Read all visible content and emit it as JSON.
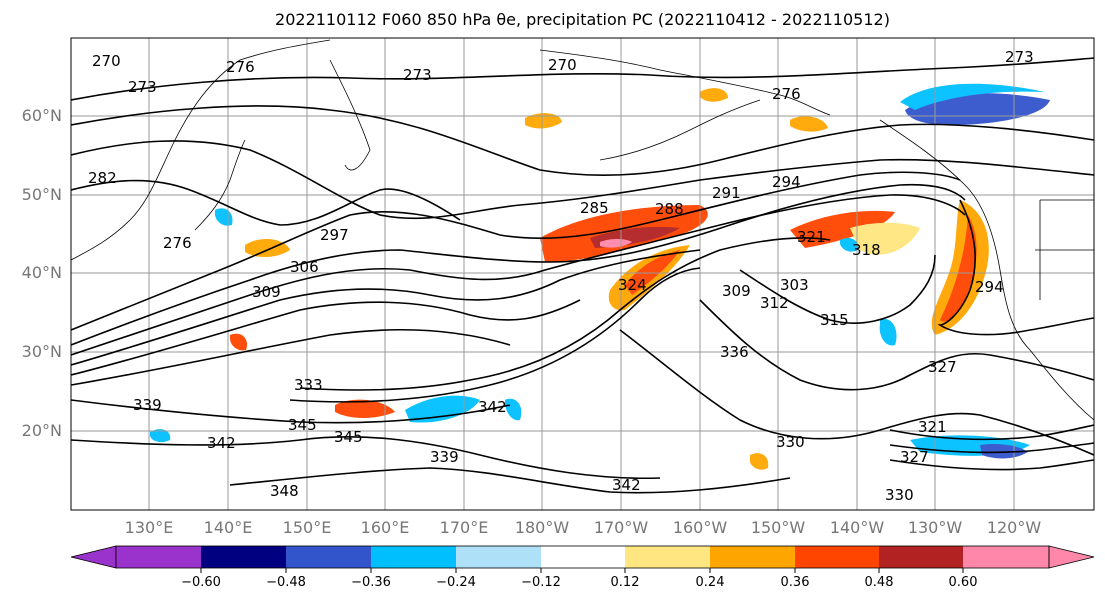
{
  "title": "2022110112 F060 850 hPa θe, precipitation PC (2022110412 - 2022110512)",
  "map": {
    "lat_labels": [
      "60°N",
      "50°N",
      "40°N",
      "30°N",
      "20°N"
    ],
    "lon_labels": [
      "130°E",
      "140°E",
      "150°E",
      "160°E",
      "170°E",
      "180°W",
      "170°W",
      "160°W",
      "150°W",
      "140°W",
      "130°W",
      "120°W"
    ],
    "contour_labels": [
      "270",
      "273",
      "276",
      "270",
      "273",
      "276",
      "273",
      "282",
      "276",
      "285",
      "288",
      "291",
      "294",
      "297",
      "306",
      "309",
      "312",
      "315",
      "318",
      "321",
      "324",
      "327",
      "330",
      "333",
      "336",
      "339",
      "342",
      "345",
      "348",
      "342",
      "345",
      "339",
      "342",
      "330",
      "327",
      "294",
      "309",
      "303",
      "321"
    ],
    "grid_color": "#999999",
    "contour_color": "#000000"
  },
  "colorbar": {
    "tick_labels": [
      "−0.60",
      "−0.48",
      "−0.36",
      "−0.24",
      "−0.12",
      "0.12",
      "0.24",
      "0.36",
      "0.48",
      "0.60"
    ],
    "ticks": [
      -0.6,
      -0.48,
      -0.36,
      -0.24,
      -0.12,
      0.12,
      0.24,
      0.36,
      0.48,
      0.6
    ],
    "colors": [
      "#9933cc",
      "#000080",
      "#3355cc",
      "#00bfff",
      "#aee0f8",
      "#ffffff",
      "#ffe680",
      "#ffa500",
      "#ff4500",
      "#b22222",
      "#ff88aa"
    ]
  }
}
